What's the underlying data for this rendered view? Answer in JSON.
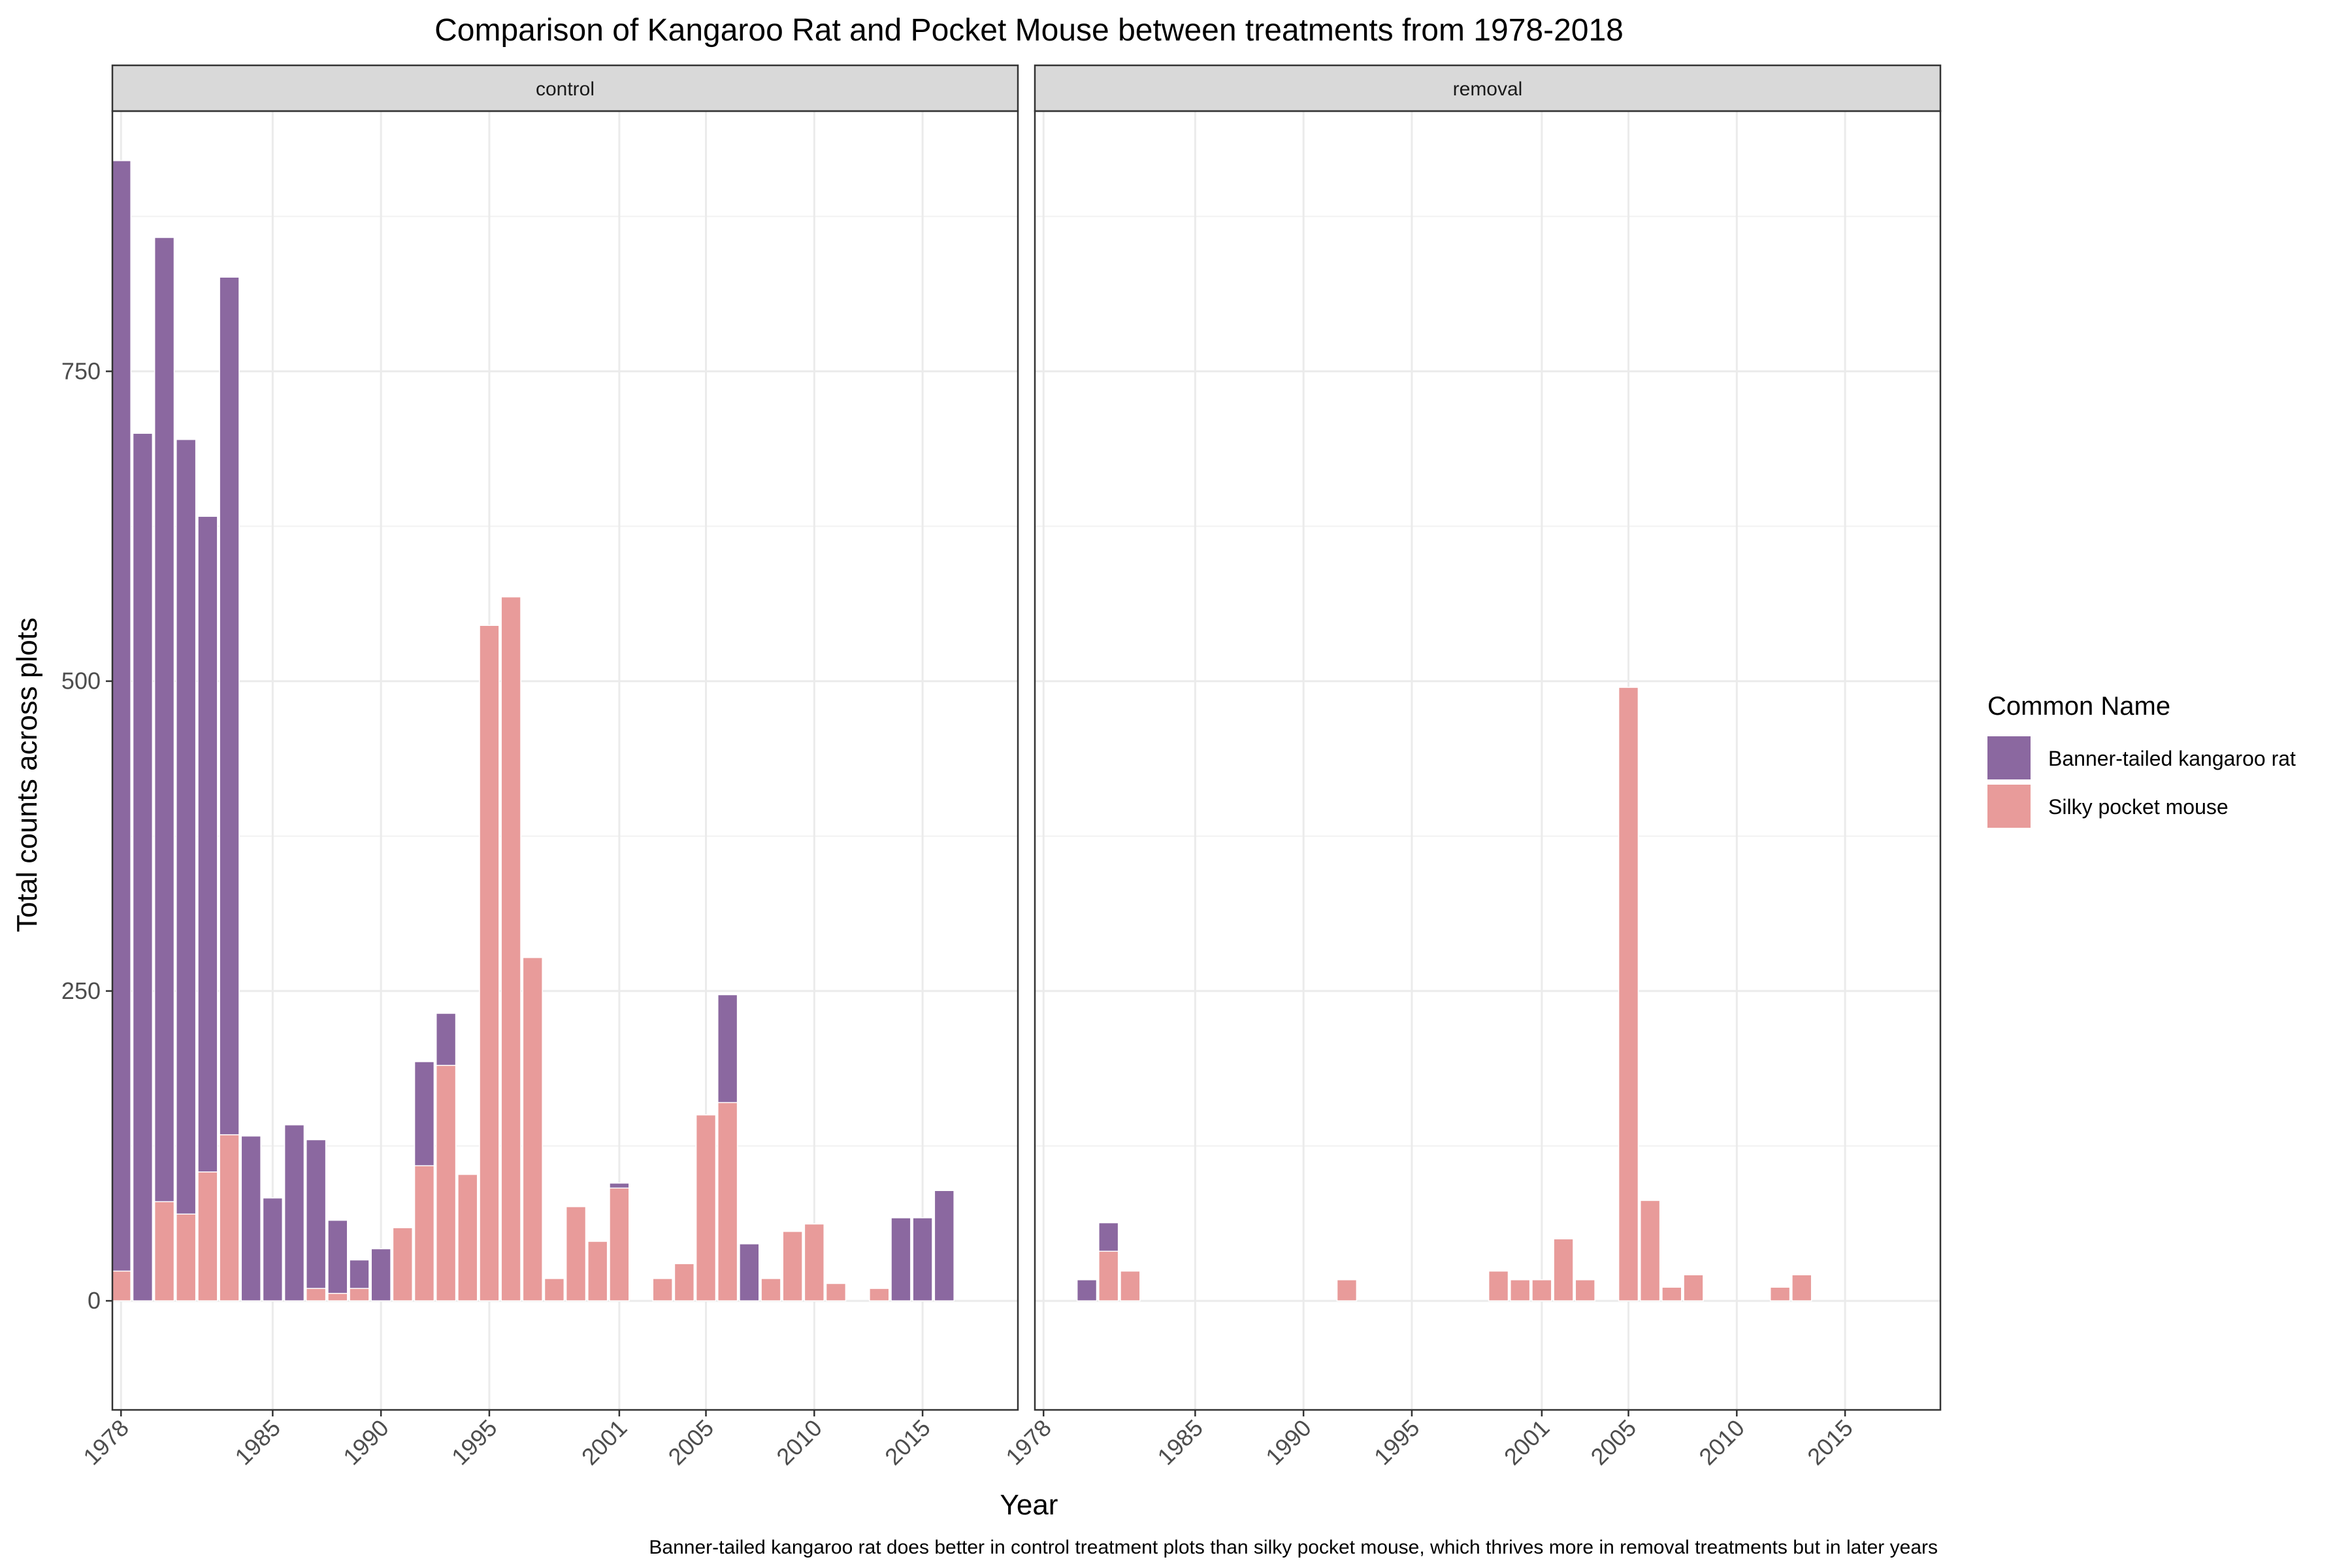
{
  "chart_data": {
    "type": "bar",
    "stacked": true,
    "title": "Comparison of Kangaroo Rat and Pocket Mouse between treatments from 1978-2018",
    "xlabel": "Year",
    "ylabel": "Total counts across plots",
    "caption": "Banner-tailed kangaroo rat does better in control treatment plots than silky pocket mouse, which thrives more in removal treatments but in later years",
    "ylim": [
      -88,
      960
    ],
    "xlim": [
      1977.6,
      2019.4
    ],
    "y_ticks": [
      0,
      250,
      500,
      750
    ],
    "x_ticks": [
      1978,
      1985,
      1990,
      1995,
      2001,
      2005,
      2010,
      2015
    ],
    "x_tick_labels": [
      "1978",
      "1985",
      "1990",
      "1995",
      "2001",
      "2005",
      "2010",
      "2015"
    ],
    "grid": true,
    "legend": {
      "title": "Common Name",
      "position": "right",
      "entries": [
        {
          "name": "Banner-tailed kangaroo rat",
          "color": "#8B68A0"
        },
        {
          "name": "Silky pocket mouse",
          "color": "#E89B9A"
        }
      ]
    },
    "colors": {
      "kangaroo": "#8B68A0",
      "mouse": "#E89B9A",
      "strip_bg": "#D9D9D9",
      "grid": "#EBEBEB",
      "panel_border": "#333333"
    },
    "panels": [
      {
        "label": "control",
        "bars": [
          {
            "year": 1978,
            "kangaroo": 920,
            "mouse": 24
          },
          {
            "year": 1979,
            "kangaroo": 700,
            "mouse": 0
          },
          {
            "year": 1980,
            "kangaroo": 858,
            "mouse": 80
          },
          {
            "year": 1981,
            "kangaroo": 695,
            "mouse": 70
          },
          {
            "year": 1982,
            "kangaroo": 633,
            "mouse": 104
          },
          {
            "year": 1983,
            "kangaroo": 826,
            "mouse": 134
          },
          {
            "year": 1984,
            "kangaroo": 133,
            "mouse": 0
          },
          {
            "year": 1985,
            "kangaroo": 83,
            "mouse": 0
          },
          {
            "year": 1986,
            "kangaroo": 142,
            "mouse": 0
          },
          {
            "year": 1987,
            "kangaroo": 130,
            "mouse": 10
          },
          {
            "year": 1988,
            "kangaroo": 65,
            "mouse": 6
          },
          {
            "year": 1989,
            "kangaroo": 33,
            "mouse": 10
          },
          {
            "year": 1990,
            "kangaroo": 42,
            "mouse": 0
          },
          {
            "year": 1991,
            "kangaroo": 59,
            "mouse": 59
          },
          {
            "year": 1992,
            "kangaroo": 193,
            "mouse": 109
          },
          {
            "year": 1993,
            "kangaroo": 232,
            "mouse": 190
          },
          {
            "year": 1994,
            "kangaroo": 102,
            "mouse": 102
          },
          {
            "year": 1995,
            "kangaroo": 545,
            "mouse": 545
          },
          {
            "year": 1996,
            "kangaroo": 568,
            "mouse": 568
          },
          {
            "year": 1997,
            "kangaroo": 277,
            "mouse": 277
          },
          {
            "year": 1998,
            "kangaroo": 18,
            "mouse": 18
          },
          {
            "year": 1999,
            "kangaroo": 76,
            "mouse": 76
          },
          {
            "year": 2000,
            "kangaroo": 48,
            "mouse": 48
          },
          {
            "year": 2001,
            "kangaroo": 95,
            "mouse": 91
          },
          {
            "year": 2003,
            "kangaroo": 18,
            "mouse": 18
          },
          {
            "year": 2004,
            "kangaroo": 30,
            "mouse": 30
          },
          {
            "year": 2005,
            "kangaroo": 150,
            "mouse": 150
          },
          {
            "year": 2006,
            "kangaroo": 247,
            "mouse": 160
          },
          {
            "year": 2007,
            "kangaroo": 46,
            "mouse": 0
          },
          {
            "year": 2008,
            "kangaroo": 18,
            "mouse": 18
          },
          {
            "year": 2009,
            "kangaroo": 56,
            "mouse": 56
          },
          {
            "year": 2010,
            "kangaroo": 62,
            "mouse": 62
          },
          {
            "year": 2011,
            "kangaroo": 14,
            "mouse": 14
          },
          {
            "year": 2013,
            "kangaroo": 10,
            "mouse": 10
          },
          {
            "year": 2014,
            "kangaroo": 67,
            "mouse": 0
          },
          {
            "year": 2015,
            "kangaroo": 67,
            "mouse": 0
          },
          {
            "year": 2016,
            "kangaroo": 89,
            "mouse": 0
          }
        ]
      },
      {
        "label": "removal",
        "bars": [
          {
            "year": 1980,
            "kangaroo": 17,
            "mouse": 0
          },
          {
            "year": 1981,
            "kangaroo": 63,
            "mouse": 40
          },
          {
            "year": 1982,
            "kangaroo": 24,
            "mouse": 24
          },
          {
            "year": 1992,
            "kangaroo": 17,
            "mouse": 17
          },
          {
            "year": 1999,
            "kangaroo": 24,
            "mouse": 24
          },
          {
            "year": 2000,
            "kangaroo": 17,
            "mouse": 17
          },
          {
            "year": 2001,
            "kangaroo": 17,
            "mouse": 17
          },
          {
            "year": 2002,
            "kangaroo": 50,
            "mouse": 50
          },
          {
            "year": 2003,
            "kangaroo": 17,
            "mouse": 17
          },
          {
            "year": 2005,
            "kangaroo": 495,
            "mouse": 495
          },
          {
            "year": 2006,
            "kangaroo": 81,
            "mouse": 81
          },
          {
            "year": 2007,
            "kangaroo": 11,
            "mouse": 11
          },
          {
            "year": 2008,
            "kangaroo": 21,
            "mouse": 21
          },
          {
            "year": 2012,
            "kangaroo": 11,
            "mouse": 11
          },
          {
            "year": 2013,
            "kangaroo": 21,
            "mouse": 21
          }
        ]
      }
    ]
  }
}
